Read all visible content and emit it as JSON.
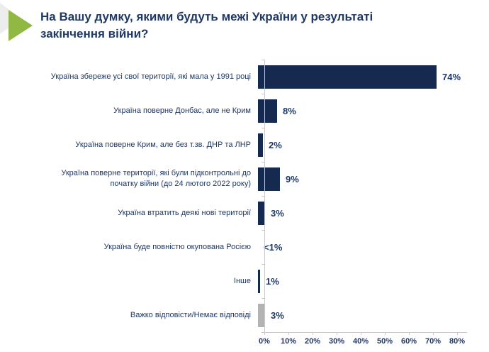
{
  "title": "На Вашу думку, якими будуть межі України у результаті закінчення війни?",
  "colors": {
    "bar": "#152a4e",
    "bar_no_answer": "#b3b3b3",
    "text": "#1f3864",
    "axis": "#c9c9c9",
    "marker_green": "#90b843",
    "marker_gray": "#ededed",
    "background": "#ffffff"
  },
  "chart_data": {
    "type": "bar",
    "orientation": "horizontal",
    "title": "На Вашу думку, якими будуть межі України у результаті закінчення війни?",
    "categories": [
      "Україна збереже усі свої території, які мала у 1991 році",
      "Україна поверне Донбас, але не Крим",
      "Україна поверне Крим, але без т.зв. ДНР та ЛНР",
      "Україна поверне території, які були підконтрольні до початку війни (до 24 лютого 2022 року)",
      "Україна втратить деякі нові території",
      "Україна буде повністю окупована Росією",
      "Інше",
      "Важко відповісти/Немає відповіді"
    ],
    "values": [
      74,
      8,
      2,
      9,
      3,
      0.5,
      1,
      3
    ],
    "value_labels": [
      "74%",
      "8%",
      "2%",
      "9%",
      "3%",
      "<1%",
      "1%",
      "3%"
    ],
    "bar_styles": [
      "main",
      "main",
      "main",
      "main",
      "main",
      "main",
      "main",
      "no_answer"
    ],
    "xlabel": "",
    "ylabel": "",
    "xlim": [
      0,
      80
    ],
    "x_ticks": [
      "0%",
      "10%",
      "20%",
      "30%",
      "40%",
      "50%",
      "60%",
      "70%",
      "80%"
    ],
    "grid": false,
    "legend": false
  }
}
